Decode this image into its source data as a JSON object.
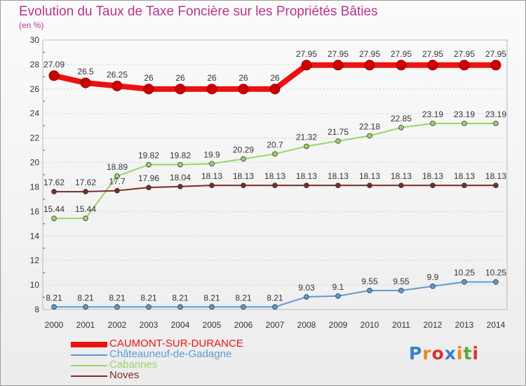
{
  "header": {
    "title": "Evolution du Taux de Taxe Foncière sur les Propriétés Bâties",
    "subtitle": "(en %)"
  },
  "logo": {
    "text": "Proxiti",
    "letters": [
      "P",
      "r",
      "o",
      "x",
      "i",
      "t",
      "i"
    ],
    "colors": [
      "#3a7fd0",
      "#e98a1e",
      "#d8342d",
      "#3a7fd0",
      "#e98a1e",
      "#5aa639",
      "#d8342d"
    ]
  },
  "chart_data": {
    "type": "line",
    "title": "Evolution du Taux de Taxe Foncière sur les Propriétés Bâties",
    "ylabel": "(en %)",
    "xlabel": "",
    "x": [
      "2000",
      "2001",
      "2002",
      "2003",
      "2004",
      "2005",
      "2006",
      "2007",
      "2008",
      "2009",
      "2010",
      "2011",
      "2012",
      "2013",
      "2014"
    ],
    "ylim": [
      8,
      30
    ],
    "yticks": [
      8,
      10,
      12,
      14,
      16,
      18,
      20,
      22,
      24,
      26,
      28,
      30
    ],
    "grid": "horizontal",
    "legend": "bottom-left",
    "series": [
      {
        "name": "CAUMONT-SUR-DURANCE",
        "color": "#ee1111",
        "labels": [
          "27.09",
          "26.5",
          "26.25",
          "26",
          "26",
          "26",
          "26",
          "26",
          "27.95",
          "27.95",
          "27.95",
          "27.95",
          "27.95",
          "27.95",
          "27.95"
        ],
        "values": [
          27.09,
          26.5,
          26.25,
          26,
          26,
          26,
          26,
          26,
          27.95,
          27.95,
          27.95,
          27.95,
          27.95,
          27.95,
          27.95
        ]
      },
      {
        "name": "Châteauneuf-de-Gadagne",
        "color": "#5b9bd5",
        "labels": [
          "8.21",
          "8.21",
          "8.21",
          "8.21",
          "8.21",
          "8.21",
          "8.21",
          "8.21",
          "9.03",
          "9.1",
          "9.55",
          "9.55",
          "9.9",
          "10.25",
          "10.25"
        ],
        "values": [
          8.21,
          8.21,
          8.21,
          8.21,
          8.21,
          8.21,
          8.21,
          8.21,
          9.03,
          9.1,
          9.55,
          9.55,
          9.9,
          10.25,
          10.25
        ]
      },
      {
        "name": "Cabannes",
        "color": "#9bd46a",
        "labels": [
          "15.44",
          "15.44",
          "18.89",
          "19.82",
          "19.82",
          "19.9",
          "20.29",
          "20.7",
          "21.32",
          "21.75",
          "22.18",
          "22.85",
          "23.19",
          "23.19",
          "23.19"
        ],
        "values": [
          15.44,
          15.44,
          18.89,
          19.82,
          19.82,
          19.9,
          20.29,
          20.7,
          21.32,
          21.75,
          22.18,
          22.85,
          23.19,
          23.19,
          23.19
        ]
      },
      {
        "name": "Noves",
        "color": "#7a2b2b",
        "labels": [
          "17.62",
          "17.62",
          "17.7",
          "17.96",
          "18.04",
          "18.13",
          "18.13",
          "18.13",
          "18.13",
          "18.13",
          "18.13",
          "18.13",
          "18.13",
          "18.13",
          "18.13"
        ],
        "values": [
          17.62,
          17.62,
          17.7,
          17.96,
          18.04,
          18.13,
          18.13,
          18.13,
          18.13,
          18.13,
          18.13,
          18.13,
          18.13,
          18.13,
          18.13
        ]
      }
    ]
  }
}
